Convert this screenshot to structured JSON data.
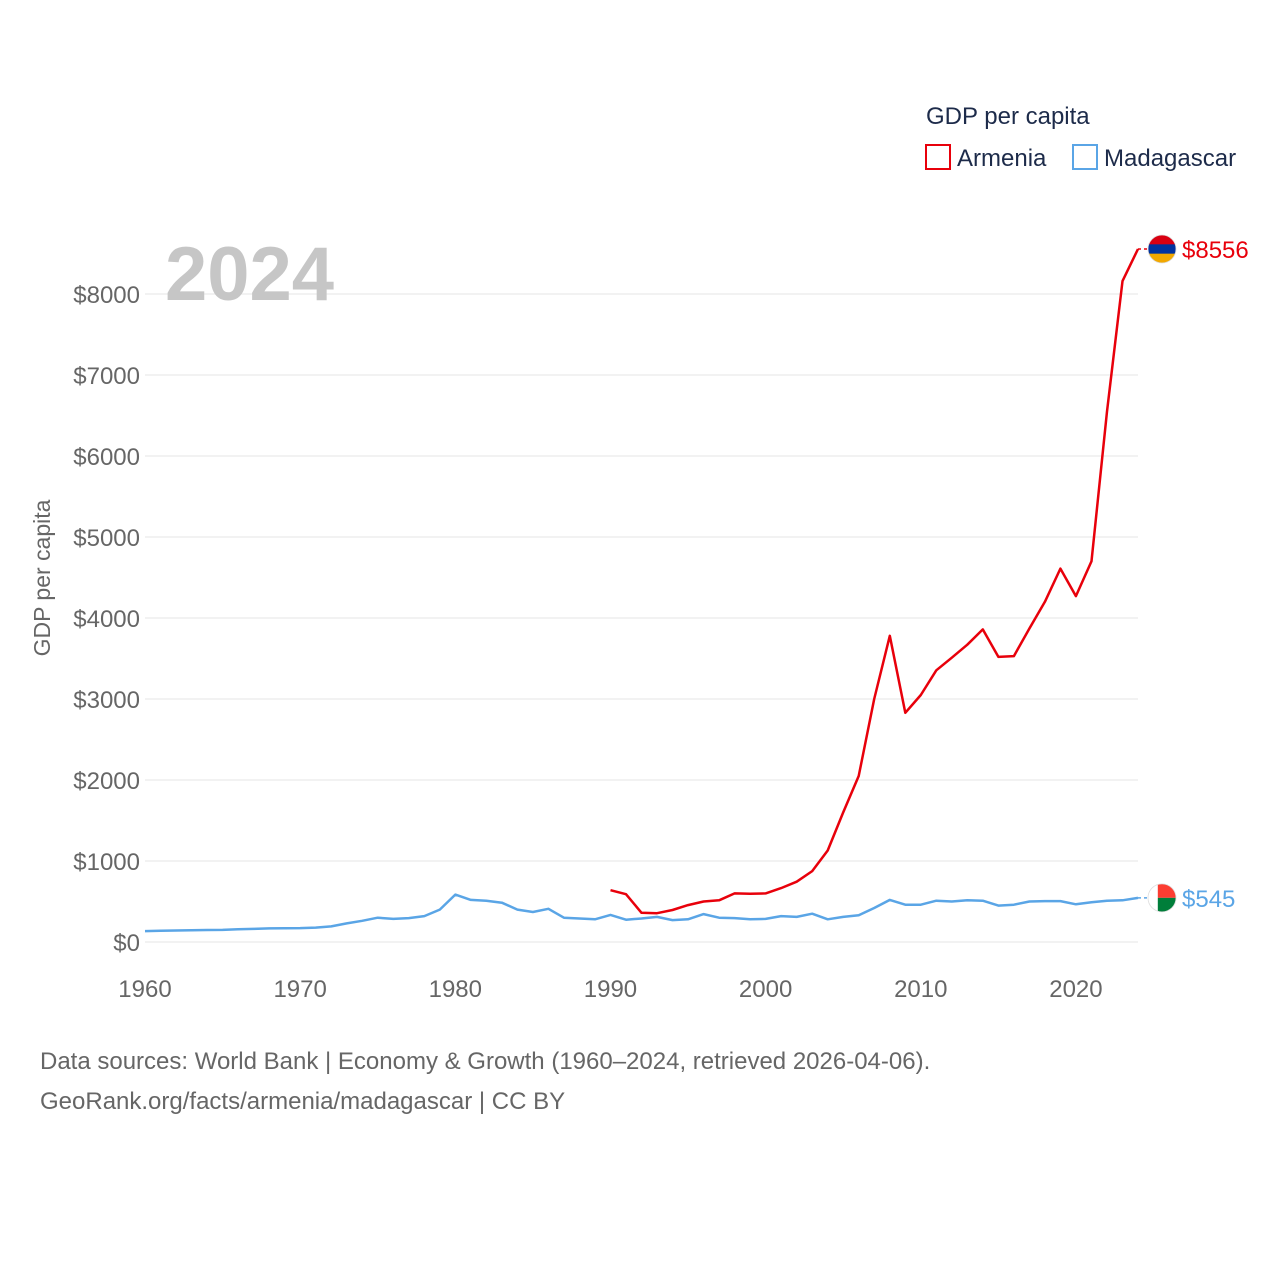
{
  "chart_data": {
    "type": "line",
    "year_watermark": "2024",
    "ylabel": "GDP per capita",
    "xlabel": "",
    "xlim": [
      1960,
      2024
    ],
    "ylim": [
      0,
      8556
    ],
    "x_ticks": [
      1960,
      1970,
      1980,
      1990,
      2000,
      2010,
      2020
    ],
    "x_tick_labels": [
      "1960",
      "1970",
      "1980",
      "1990",
      "2000",
      "2010",
      "2020"
    ],
    "y_ticks": [
      0,
      1000,
      2000,
      3000,
      4000,
      5000,
      6000,
      7000,
      8000
    ],
    "y_tick_labels": [
      "$0",
      "$1000",
      "$2000",
      "$3000",
      "$4000",
      "$5000",
      "$6000",
      "$7000",
      "$8000"
    ],
    "grid": true,
    "legend": {
      "title": "GDP per capita",
      "position": "top-right",
      "entries": [
        "Armenia",
        "Madagascar"
      ]
    },
    "series": [
      {
        "name": "Armenia",
        "color": "#e8000b",
        "end_label": "$8556",
        "flag_colors": [
          "#d90012",
          "#0033a0",
          "#f2a800"
        ],
        "x": [
          1990,
          1991,
          1992,
          1993,
          1994,
          1995,
          1996,
          1997,
          1998,
          1999,
          2000,
          2001,
          2002,
          2003,
          2004,
          2005,
          2006,
          2007,
          2008,
          2009,
          2010,
          2011,
          2012,
          2013,
          2014,
          2015,
          2016,
          2017,
          2018,
          2019,
          2020,
          2021,
          2022,
          2023,
          2024
        ],
        "values": [
          640,
          590,
          360,
          355,
          395,
          455,
          500,
          515,
          600,
          595,
          600,
          665,
          745,
          875,
          1130,
          1600,
          2050,
          3000,
          3780,
          2830,
          3050,
          3355,
          3510,
          3670,
          3860,
          3520,
          3530,
          3870,
          4200,
          4610,
          4270,
          4700,
          6550,
          8160,
          8556
        ]
      },
      {
        "name": "Madagascar",
        "color": "#5aa5e6",
        "end_label": "$545",
        "flag_colors": [
          "#ffffff",
          "#fc3d32",
          "#007e3a"
        ],
        "x": [
          1960,
          1961,
          1962,
          1963,
          1964,
          1965,
          1966,
          1967,
          1968,
          1969,
          1970,
          1971,
          1972,
          1973,
          1974,
          1975,
          1976,
          1977,
          1978,
          1979,
          1980,
          1981,
          1982,
          1983,
          1984,
          1985,
          1986,
          1987,
          1988,
          1989,
          1990,
          1991,
          1992,
          1993,
          1994,
          1995,
          1996,
          1997,
          1998,
          1999,
          2000,
          2001,
          2002,
          2003,
          2004,
          2005,
          2006,
          2007,
          2008,
          2009,
          2010,
          2011,
          2012,
          2013,
          2014,
          2015,
          2016,
          2017,
          2018,
          2019,
          2020,
          2021,
          2022,
          2023,
          2024
        ],
        "values": [
          135,
          138,
          142,
          145,
          148,
          150,
          157,
          162,
          168,
          170,
          172,
          178,
          193,
          230,
          262,
          300,
          285,
          295,
          320,
          400,
          585,
          520,
          510,
          485,
          400,
          370,
          410,
          300,
          290,
          280,
          335,
          275,
          290,
          310,
          270,
          280,
          345,
          300,
          295,
          280,
          285,
          320,
          310,
          350,
          280,
          310,
          330,
          420,
          520,
          460,
          460,
          510,
          500,
          515,
          510,
          450,
          460,
          500,
          505,
          505,
          465,
          490,
          510,
          515,
          545
        ]
      }
    ]
  },
  "footer": {
    "source_line": "Data sources: World Bank | Economy & Growth (1960–2024, retrieved 2026-04-06).",
    "attribution_line": "GeoRank.org/facts/armenia/madagascar | CC BY"
  }
}
